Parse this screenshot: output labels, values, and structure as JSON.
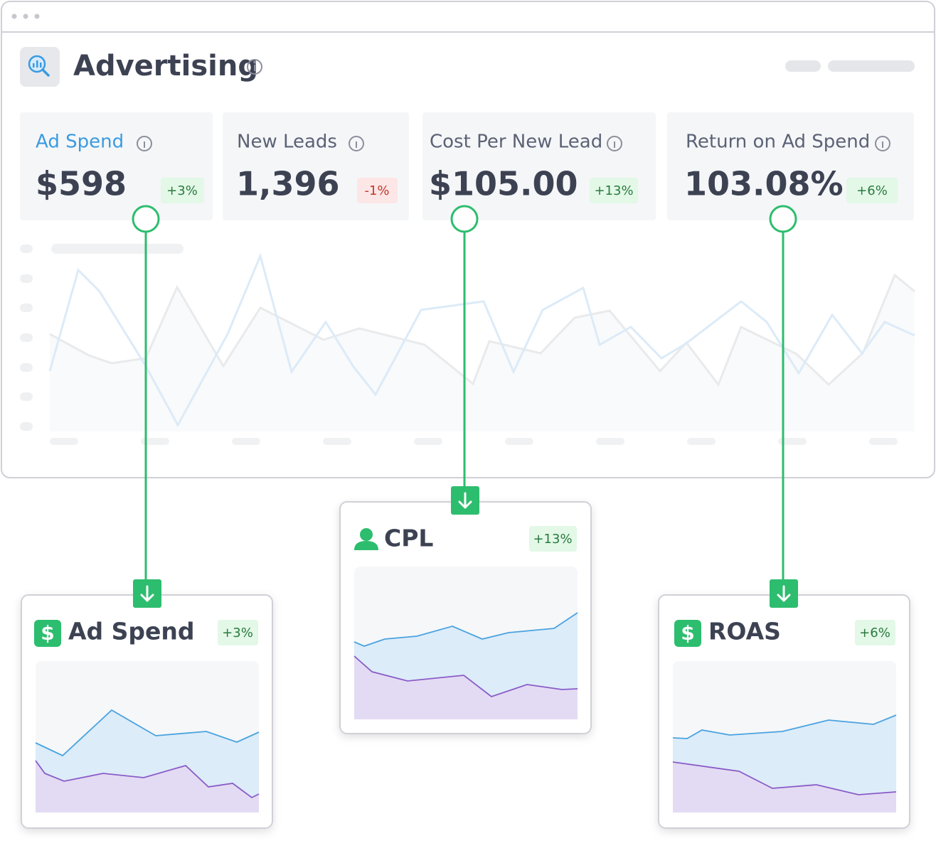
{
  "header": {
    "title": "Advertising"
  },
  "metrics": [
    {
      "label": "Ad Spend",
      "value": "$598",
      "change": "+3%"
    },
    {
      "label": "New Leads",
      "value": "1,396",
      "change": "-1%"
    },
    {
      "label": "Cost Per New Lead",
      "value": "$105.00",
      "change": "+13%"
    },
    {
      "label": "Return on Ad Spend",
      "value": "103.08%",
      "change": "+6%"
    }
  ],
  "cards": [
    {
      "title": "Ad Spend",
      "change": "+3%"
    },
    {
      "title": "CPL",
      "change": "+13%"
    },
    {
      "title": "ROAS",
      "change": "+6%"
    }
  ]
}
